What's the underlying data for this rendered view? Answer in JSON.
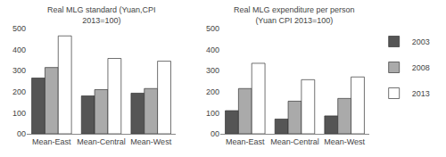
{
  "chart_data": [
    {
      "type": "bar",
      "title": "Real MLG standard (Yuan,CPI\n2013=100)",
      "categories": [
        "Mean-East",
        "Mean-Central",
        "Mean-West"
      ],
      "series": [
        {
          "name": "2003",
          "color": "#555555",
          "values": [
            265,
            180,
            193
          ]
        },
        {
          "name": "2008",
          "color": "#aaaaaa",
          "values": [
            315,
            210,
            215
          ]
        },
        {
          "name": "2013",
          "color": "#ffffff",
          "values": [
            465,
            358,
            345
          ]
        }
      ],
      "ylim": [
        0,
        500
      ],
      "yticks": [
        {
          "value": 0,
          "label": "00"
        },
        100,
        200,
        300,
        400,
        500
      ],
      "grid": false
    },
    {
      "type": "bar",
      "title": "Real MLG expenditure per person\n(Yuan CPI 2013=100)",
      "categories": [
        "Mean-East",
        "Mean-Central",
        "Mean-West"
      ],
      "series": [
        {
          "name": "2003",
          "color": "#555555",
          "values": [
            110,
            70,
            85
          ]
        },
        {
          "name": "2008",
          "color": "#aaaaaa",
          "values": [
            215,
            155,
            168
          ]
        },
        {
          "name": "2013",
          "color": "#ffffff",
          "values": [
            335,
            257,
            270
          ]
        }
      ],
      "ylim": [
        0,
        500
      ],
      "yticks": [
        {
          "value": 0,
          "label": "00"
        },
        100,
        200,
        300,
        400,
        500
      ],
      "grid": false,
      "legend": "upper right"
    }
  ]
}
